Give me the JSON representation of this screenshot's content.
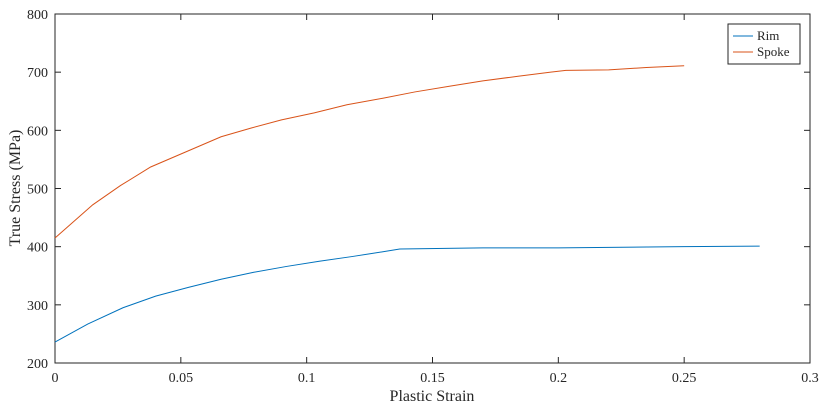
{
  "chart_data": {
    "type": "line",
    "xlabel": "Plastic Strain",
    "ylabel": "True Stress (MPa)",
    "xlim": [
      0,
      0.3
    ],
    "ylim": [
      200,
      800
    ],
    "xticks": [
      "0",
      "0.05",
      "0.1",
      "0.15",
      "0.2",
      "0.25",
      "0.3"
    ],
    "yticks": [
      "200",
      "300",
      "400",
      "500",
      "600",
      "700",
      "800"
    ],
    "grid": false,
    "legend_position": "top-right",
    "series": [
      {
        "name": "Rim",
        "color": "#0072BD",
        "x": [
          0,
          0.013,
          0.027,
          0.04,
          0.053,
          0.066,
          0.079,
          0.092,
          0.105,
          0.118,
          0.13,
          0.137,
          0.17,
          0.2,
          0.25,
          0.28
        ],
        "y": [
          236,
          267,
          295,
          315,
          330,
          344,
          356,
          366,
          375,
          383,
          391,
          396,
          398,
          398,
          400,
          401
        ]
      },
      {
        "name": "Spoke",
        "color": "#D95319",
        "x": [
          0,
          0.015,
          0.026,
          0.038,
          0.052,
          0.066,
          0.078,
          0.09,
          0.103,
          0.116,
          0.13,
          0.143,
          0.157,
          0.17,
          0.184,
          0.197,
          0.203,
          0.22,
          0.235,
          0.25
        ],
        "y": [
          415,
          472,
          505,
          537,
          563,
          589,
          604,
          618,
          630,
          644,
          655,
          666,
          676,
          685,
          693,
          700,
          703,
          704,
          708,
          711
        ]
      }
    ]
  }
}
